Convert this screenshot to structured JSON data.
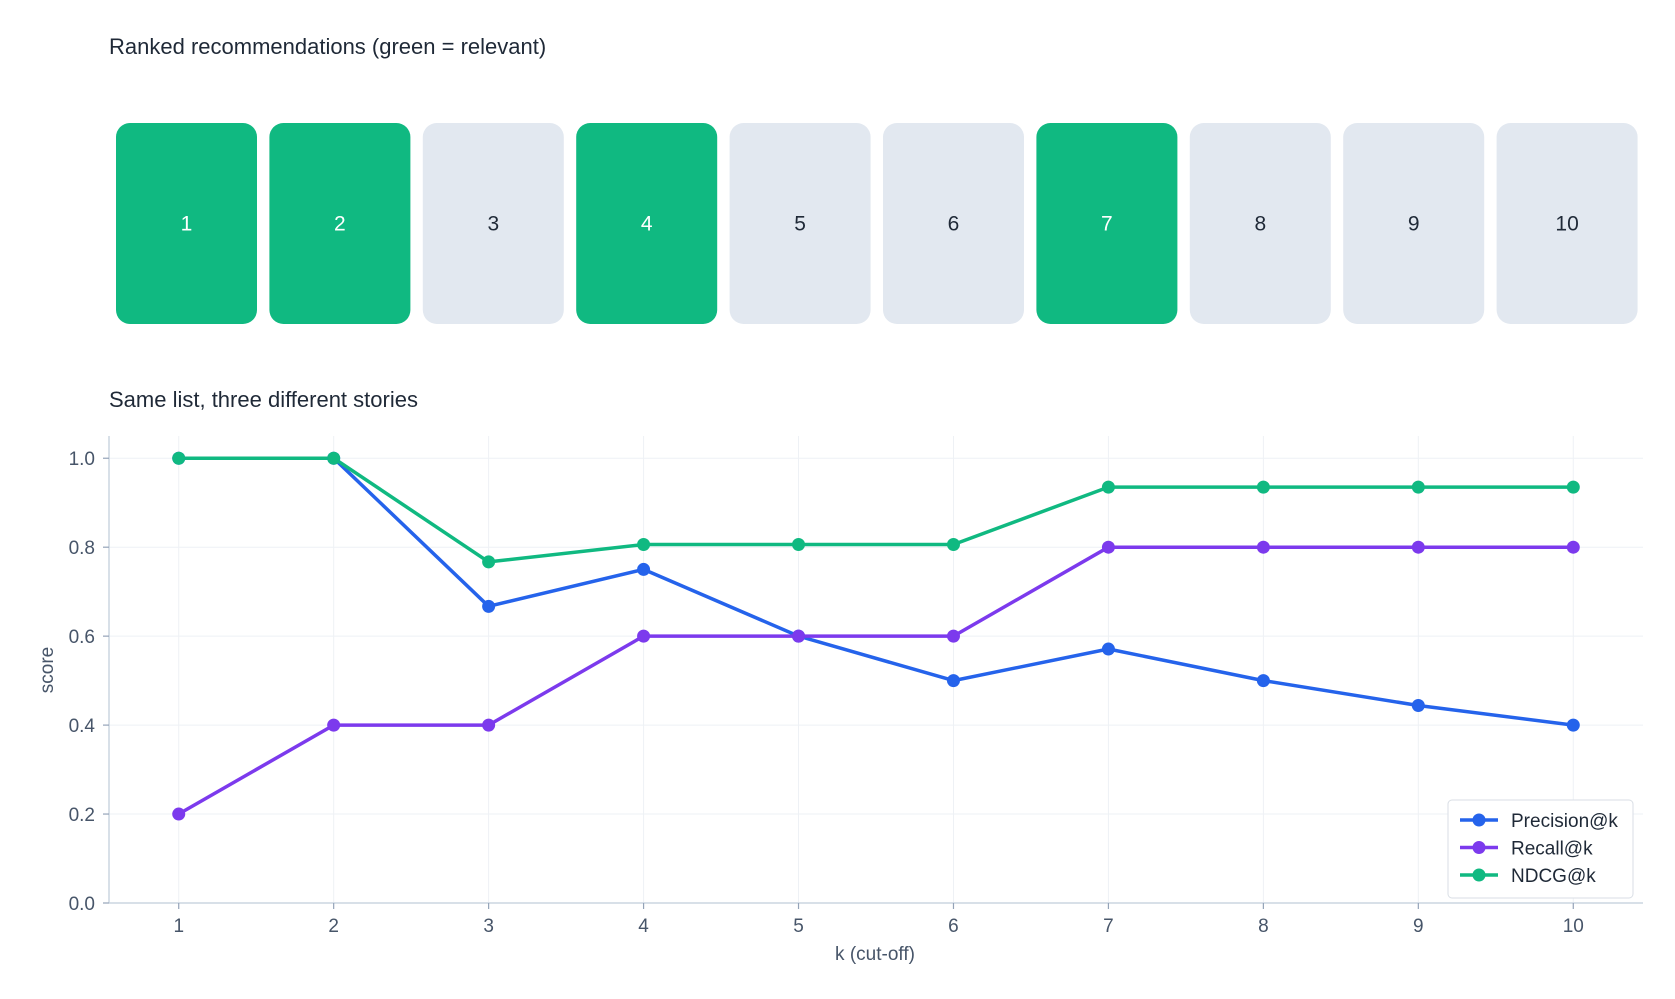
{
  "panel_top": {
    "title": "Ranked recommendations  (green = relevant)",
    "relevant_color": "#10b981",
    "irrelevant_color": "#e2e8f0",
    "items": [
      {
        "rank": "1",
        "relevant": true
      },
      {
        "rank": "2",
        "relevant": true
      },
      {
        "rank": "3",
        "relevant": false
      },
      {
        "rank": "4",
        "relevant": true
      },
      {
        "rank": "5",
        "relevant": false
      },
      {
        "rank": "6",
        "relevant": false
      },
      {
        "rank": "7",
        "relevant": true
      },
      {
        "rank": "8",
        "relevant": false
      },
      {
        "rank": "9",
        "relevant": false
      },
      {
        "rank": "10",
        "relevant": false
      }
    ]
  },
  "chart_data": {
    "type": "line",
    "title": "Same list, three different stories",
    "xlabel": "k (cut-off)",
    "ylabel": "score",
    "x": [
      1,
      2,
      3,
      4,
      5,
      6,
      7,
      8,
      9,
      10
    ],
    "x_tick_labels": [
      "1",
      "2",
      "3",
      "4",
      "5",
      "6",
      "7",
      "8",
      "9",
      "10"
    ],
    "y_tick_labels": [
      "0.0",
      "0.2",
      "0.4",
      "0.6",
      "0.8",
      "1.0"
    ],
    "y_ticks": [
      0.0,
      0.2,
      0.4,
      0.6,
      0.8,
      1.0
    ],
    "ylim": [
      0,
      1.05
    ],
    "xlim": [
      0.55,
      10.45
    ],
    "grid": true,
    "legend_position": "bottom-right",
    "series": [
      {
        "name": "Precision@k",
        "color": "#2563eb",
        "values": [
          1.0,
          1.0,
          0.667,
          0.75,
          0.6,
          0.5,
          0.571,
          0.5,
          0.444,
          0.4
        ]
      },
      {
        "name": "Recall@k",
        "color": "#7c3aed",
        "values": [
          0.2,
          0.4,
          0.4,
          0.6,
          0.6,
          0.6,
          0.8,
          0.8,
          0.8,
          0.8
        ]
      },
      {
        "name": "NDCG@k",
        "color": "#10b981",
        "values": [
          1.0,
          1.0,
          0.767,
          0.806,
          0.806,
          0.806,
          0.935,
          0.935,
          0.935,
          0.935
        ]
      }
    ]
  }
}
